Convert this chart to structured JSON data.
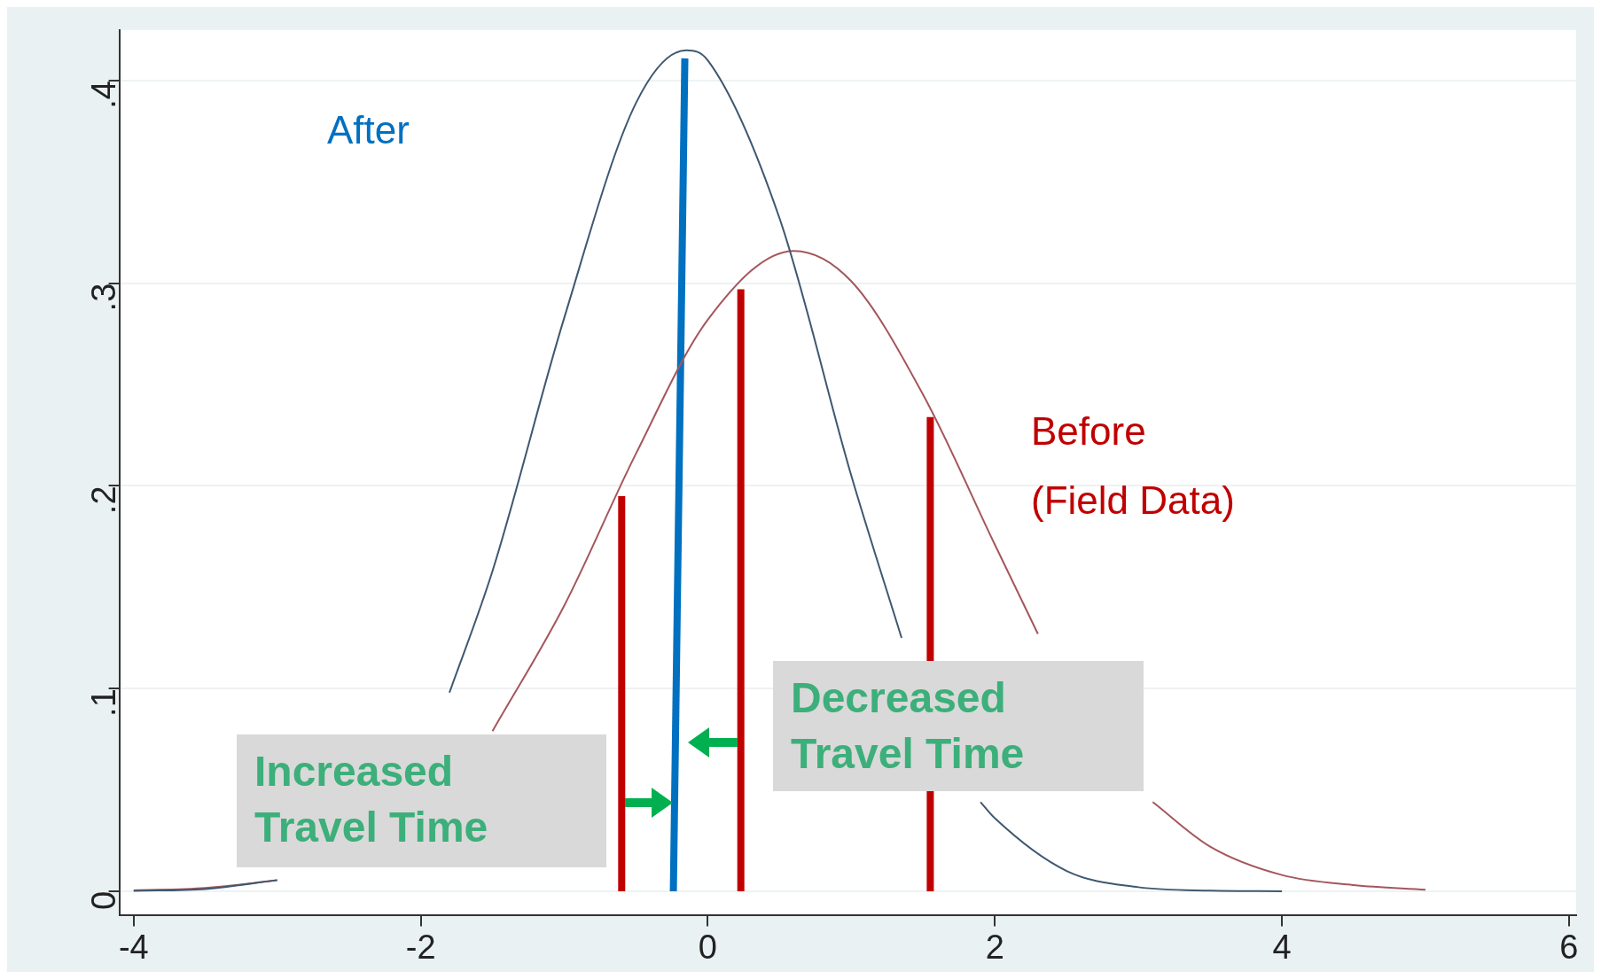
{
  "chart_data": {
    "type": "line",
    "xlim": [
      -4.1,
      6.05
    ],
    "ylim": [
      -0.012,
      0.425
    ],
    "xticks": [
      -4,
      -2,
      0,
      2,
      4,
      6
    ],
    "yticks": [
      {
        "value": 0,
        "label": "0"
      },
      {
        "value": 0.1,
        "label": ".1"
      },
      {
        "value": 0.2,
        "label": ".2"
      },
      {
        "value": 0.3,
        "label": ".3"
      },
      {
        "value": 0.4,
        "label": ".4"
      }
    ],
    "grid": "y",
    "legend": false,
    "marker": "none",
    "line_style": "solid",
    "series": [
      {
        "color": "#3e5870",
        "x": [
          -4,
          -3.5,
          -3,
          -2.5,
          -1.8,
          -1.5,
          -1,
          -0.5,
          -0.15,
          0,
          0.5,
          1,
          1.35,
          1.6,
          1.9,
          2,
          2.5,
          3,
          3.5,
          4
        ],
        "values": [
          0.0002,
          0.0011,
          0.0055,
          null,
          0.098,
          0.158,
          0.283,
          0.389,
          0.415,
          0.41,
          0.332,
          0.205,
          0.125,
          null,
          0.044,
          0.036,
          0.01,
          0.002,
          0.0003,
          0
        ]
      },
      {
        "color": "#a4575c",
        "x": [
          -4,
          -3.5,
          -3,
          -2.5,
          -1.5,
          -1,
          -0.5,
          0,
          0.6,
          1,
          1.5,
          2,
          2.3,
          2.7,
          3.1,
          3.5,
          4,
          4.5,
          5
        ],
        "values": [
          0.0004,
          0.0016,
          0.0054,
          null,
          0.079,
          0.141,
          0.216,
          0.282,
          0.316,
          0.301,
          0.245,
          0.171,
          0.127,
          null,
          0.044,
          0.022,
          0.008,
          0.003,
          0.0007
        ]
      },
      {
        "name": "Before (Field Data)",
        "color": "#c00000",
        "x": [
          -0.6,
          -0.6,
          null,
          0.23,
          0.23,
          null,
          1.55,
          1.55
        ],
        "values": [
          0,
          0.195,
          null,
          0,
          0.297,
          null,
          0,
          0.234
        ]
      },
      {
        "name": "After",
        "color": "#0070c0",
        "x": [
          -0.24,
          -0.16
        ],
        "values": [
          0,
          0.411
        ]
      }
    ],
    "annotations": [
      "Increased Travel Time",
      "Decreased Travel Time"
    ]
  }
}
